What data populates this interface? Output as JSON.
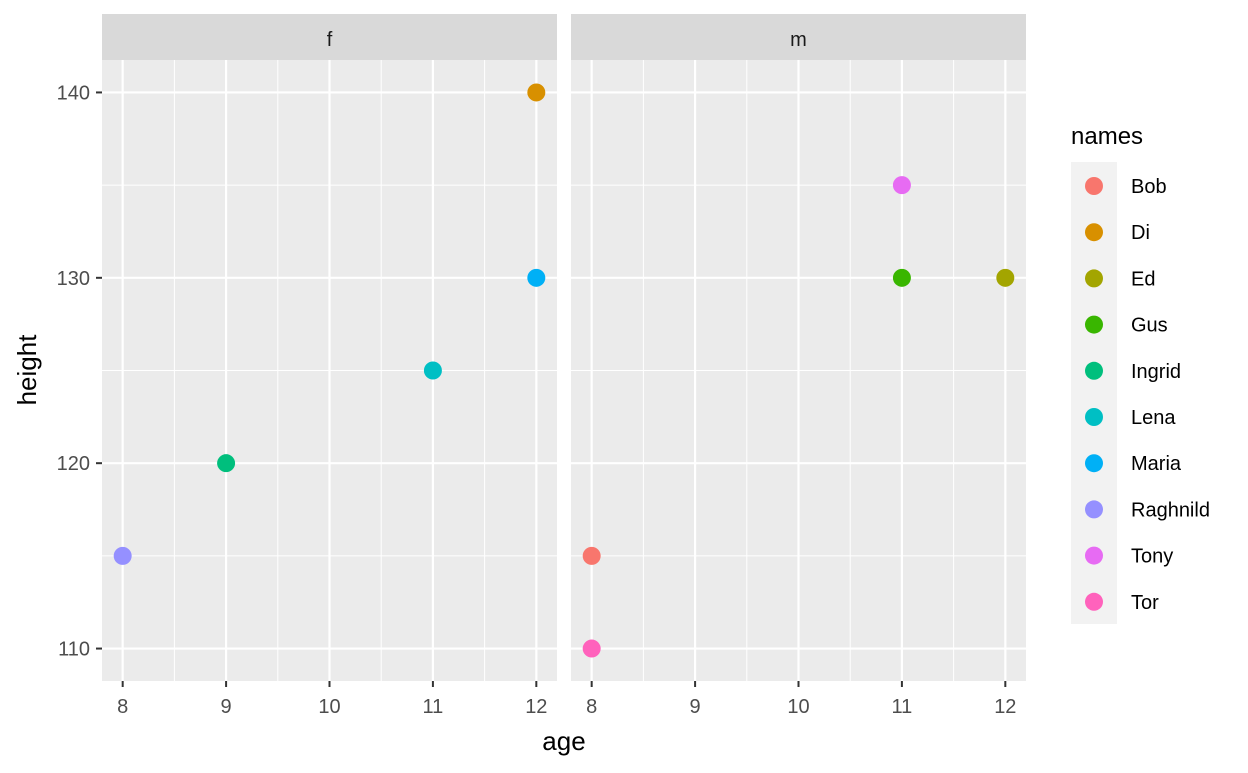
{
  "chart_data": {
    "type": "scatter",
    "facet_by": "sex",
    "panels": [
      {
        "label": "f",
        "points": [
          {
            "name": "Raghnild",
            "x": 8,
            "y": 115
          },
          {
            "name": "Ingrid",
            "x": 9,
            "y": 120
          },
          {
            "name": "Lena",
            "x": 11,
            "y": 125
          },
          {
            "name": "Maria",
            "x": 12,
            "y": 130
          },
          {
            "name": "Di",
            "x": 12,
            "y": 140
          }
        ]
      },
      {
        "label": "m",
        "points": [
          {
            "name": "Tor",
            "x": 8,
            "y": 110
          },
          {
            "name": "Bob",
            "x": 8,
            "y": 115
          },
          {
            "name": "Gus",
            "x": 11,
            "y": 130
          },
          {
            "name": "Tony",
            "x": 11,
            "y": 135
          },
          {
            "name": "Ed",
            "x": 12,
            "y": 130
          }
        ]
      }
    ],
    "xlabel": "age",
    "ylabel": "height",
    "xlim": [
      7.8,
      12.2
    ],
    "ylim": [
      108.25,
      141.75
    ],
    "xticks": [
      8,
      9,
      10,
      11,
      12
    ],
    "yticks": [
      110,
      120,
      130,
      140
    ],
    "grid": true,
    "legend": {
      "title": "names",
      "placement": "right",
      "entries": [
        {
          "name": "Bob",
          "color": "#F8766D"
        },
        {
          "name": "Di",
          "color": "#D89000"
        },
        {
          "name": "Ed",
          "color": "#A3A500"
        },
        {
          "name": "Gus",
          "color": "#39B600"
        },
        {
          "name": "Ingrid",
          "color": "#00BF7D"
        },
        {
          "name": "Lena",
          "color": "#00BFC4"
        },
        {
          "name": "Maria",
          "color": "#00B0F6"
        },
        {
          "name": "Raghnild",
          "color": "#9590FF"
        },
        {
          "name": "Tony",
          "color": "#E76BF3"
        },
        {
          "name": "Tor",
          "color": "#FF62BC"
        }
      ]
    }
  }
}
